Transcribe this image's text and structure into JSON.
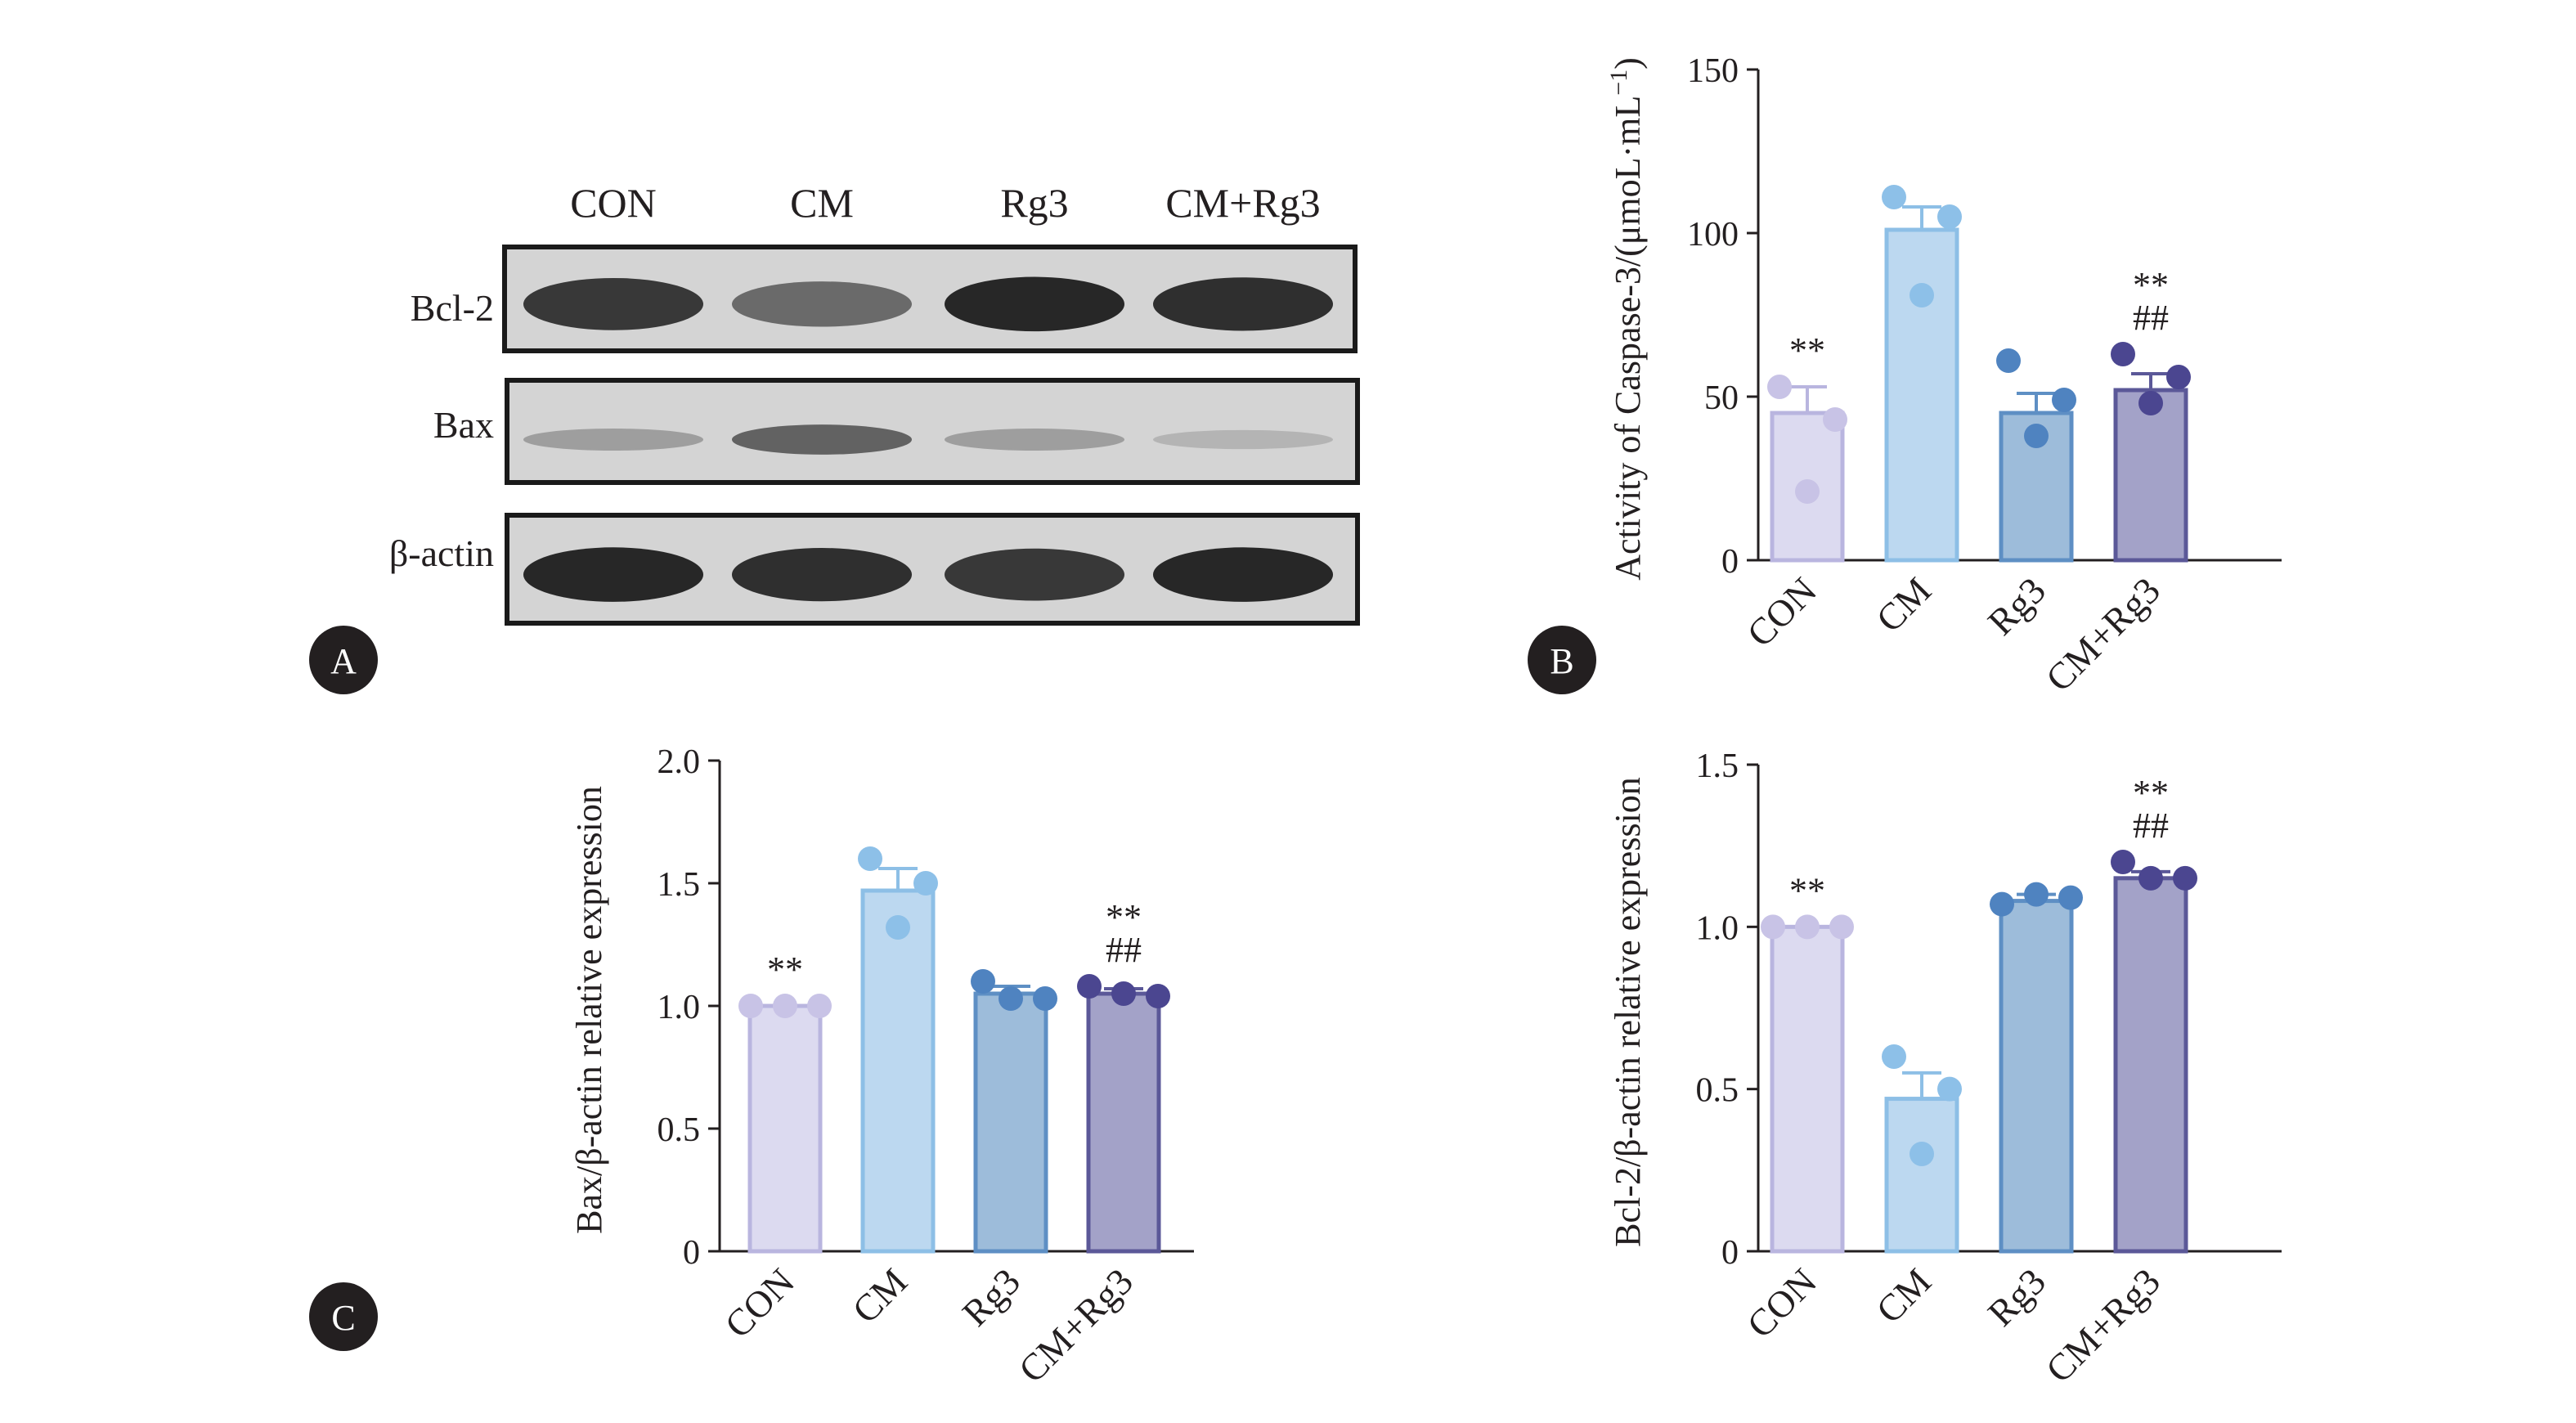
{
  "panel_labels": {
    "a": "A",
    "b": "B",
    "c": "C"
  },
  "western_blot": {
    "lane_labels": [
      "CON",
      "CM",
      "Rg3",
      "CM+Rg3"
    ],
    "rows": [
      {
        "label": "Bcl-2",
        "intensity": [
          0.85,
          0.55,
          0.95,
          0.9
        ]
      },
      {
        "label": "Bax",
        "intensity": [
          0.25,
          0.6,
          0.25,
          0.12
        ]
      },
      {
        "label": "β-actin",
        "intensity": [
          0.95,
          0.9,
          0.85,
          0.95
        ]
      }
    ]
  },
  "colors": {
    "fills": [
      "#dcdaf0",
      "#bcd8f0",
      "#9dbcda",
      "#a3a2c8"
    ],
    "strokes": [
      "#b9b5df",
      "#8dbfe6",
      "#5e8fc4",
      "#5b5898"
    ],
    "points": [
      "#c8c3e6",
      "#8dc0e8",
      "#4f83c0",
      "#4b4690"
    ]
  },
  "chart_data": [
    {
      "id": "B",
      "type": "bar",
      "categories": [
        "CON",
        "CM",
        "Rg3",
        "CM+Rg3"
      ],
      "values": [
        45,
        101,
        45,
        52
      ],
      "errors": [
        8,
        7,
        6,
        5
      ],
      "points": [
        [
          53,
          43,
          21
        ],
        [
          111,
          105,
          81
        ],
        [
          61,
          49,
          38
        ],
        [
          63,
          56,
          48
        ]
      ],
      "annotations": [
        [
          "**"
        ],
        [],
        [],
        [
          "**",
          "##"
        ]
      ],
      "ylabel_main": "Activity of Caspase-3/(μmoL·mL",
      "ylabel_sup": "−1",
      "ylabel_close": ")",
      "ylim": [
        0,
        150
      ],
      "yticks": [
        "0",
        "50",
        "100",
        "150"
      ]
    },
    {
      "id": "C1",
      "type": "bar",
      "categories": [
        "CON",
        "CM",
        "Rg3",
        "CM+Rg3"
      ],
      "values": [
        1.0,
        1.47,
        1.05,
        1.05
      ],
      "errors": [
        0,
        0.09,
        0.03,
        0.02
      ],
      "points": [
        [
          1.0,
          1.0,
          1.0
        ],
        [
          1.6,
          1.5,
          1.32
        ],
        [
          1.1,
          1.03,
          1.03
        ],
        [
          1.08,
          1.05,
          1.04
        ]
      ],
      "annotations": [
        [
          "**"
        ],
        [],
        [],
        [
          "**",
          "##"
        ]
      ],
      "ylabel_main": "Bax/β-actin relative expression",
      "ylabel_sup": "",
      "ylabel_close": "",
      "ylim": [
        0,
        2.0
      ],
      "yticks": [
        "0",
        "0.5",
        "1.0",
        "1.5",
        "2.0"
      ]
    },
    {
      "id": "C2",
      "type": "bar",
      "categories": [
        "CON",
        "CM",
        "Rg3",
        "CM+Rg3"
      ],
      "values": [
        1.0,
        0.47,
        1.08,
        1.15
      ],
      "errors": [
        0,
        0.08,
        0.02,
        0.02
      ],
      "points": [
        [
          1.0,
          1.0,
          1.0
        ],
        [
          0.6,
          0.5,
          0.3
        ],
        [
          1.07,
          1.1,
          1.09
        ],
        [
          1.2,
          1.15,
          1.15
        ]
      ],
      "annotations": [
        [
          "**"
        ],
        [],
        [],
        [
          "**",
          "##"
        ]
      ],
      "ylabel_main": "Bcl-2/β-actin relative expression",
      "ylabel_sup": "",
      "ylabel_close": "",
      "ylim": [
        0,
        1.5
      ],
      "yticks": [
        "0",
        "0.5",
        "1.0",
        "1.5"
      ]
    }
  ]
}
